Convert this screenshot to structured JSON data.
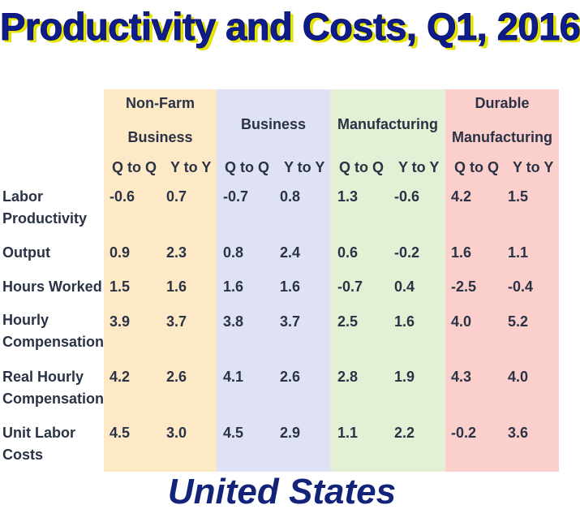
{
  "title": "Productivity and Costs, Q1, 2016",
  "footer": "United States",
  "groups": [
    {
      "line1": "Non-Farm",
      "line2": "Business",
      "q_label": "Q to Q",
      "y_label": "Y to Y",
      "color": "#fde9c6"
    },
    {
      "line1": "Business",
      "line2": "",
      "q_label": "Q to Q",
      "y_label": "Y to Y",
      "color": "#dfe2f5"
    },
    {
      "line1": "Manufacturing",
      "line2": "",
      "q_label": "Q to Q",
      "y_label": "Y to Y",
      "color": "#e4f0d6"
    },
    {
      "line1": "Durable",
      "line2": "Manufacturing",
      "q_label": "Q to Q",
      "y_label": "Y to Y",
      "color": "#fbcfcc"
    }
  ],
  "rows": [
    {
      "label1": "Labor",
      "label2": "Productivity",
      "values": [
        "-0.6",
        "0.7",
        "-0.7",
        "0.8",
        "1.3",
        "-0.6",
        "4.2",
        "1.5"
      ]
    },
    {
      "label1": "Output",
      "label2": "",
      "values": [
        "0.9",
        "2.3",
        "0.8",
        "2.4",
        "0.6",
        "-0.2",
        "1.6",
        "1.1"
      ]
    },
    {
      "label1": "Hours Worked",
      "label2": "",
      "values": [
        "1.5",
        "1.6",
        "1.6",
        "1.6",
        "-0.7",
        "0.4",
        "-2.5",
        "-0.4"
      ]
    },
    {
      "label1": "Hourly",
      "label2": "Compensation",
      "values": [
        "3.9",
        "3.7",
        "3.8",
        "3.7",
        "2.5",
        "1.6",
        "4.0",
        "5.2"
      ]
    },
    {
      "label1": "Real Hourly",
      "label2": "Compensation",
      "values": [
        "4.2",
        "2.6",
        "4.1",
        "2.6",
        "2.8",
        "1.9",
        "4.3",
        "4.0"
      ]
    },
    {
      "label1": "Unit Labor",
      "label2": "Costs",
      "values": [
        "4.5",
        "3.0",
        "4.5",
        "2.9",
        "1.1",
        "2.2",
        "-0.2",
        "3.6"
      ]
    }
  ]
}
